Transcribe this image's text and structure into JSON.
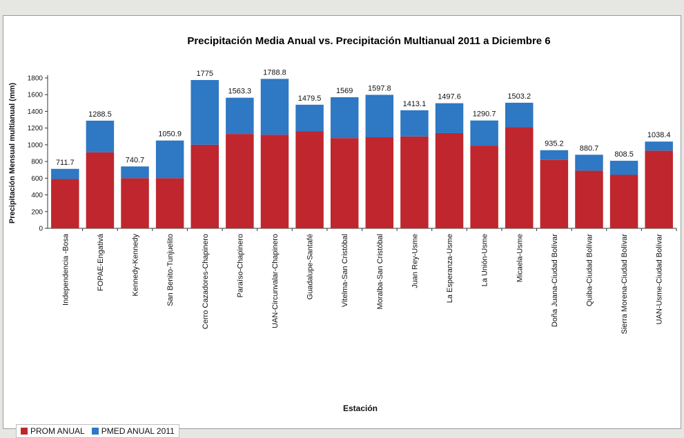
{
  "chart_data": {
    "type": "bar",
    "stacked": true,
    "title": "Precipitación Media Anual vs.  Precipitación Multianual 2011 a Diciembre 6",
    "xlabel": "Estación",
    "ylabel": "Precipitación Mensual multianual (mm)",
    "ylim": [
      0,
      1800
    ],
    "yticks": [
      0,
      200,
      400,
      600,
      800,
      1000,
      1200,
      1400,
      1600,
      1800
    ],
    "grid": false,
    "legend_position": "bottom-left",
    "categories": [
      "Independencia -Bosa",
      "FOPAE-Engativá",
      "Kennedy-Kennedy",
      "San Benito-Tunjuelito",
      "Cerro Cazadores-Chapinero",
      "Paraíso-Chapinero",
      "UAN-Circunvalar-Chapinero",
      "Guadalupe-Santafé",
      "Vitelma-San Cristóbal",
      "Moralba-San Cristóbal",
      "Juan Rey-Usme",
      "La Esperanza-Usme",
      "La Unión-Usme",
      "Micaela-Usme",
      "Doña Juana-Ciudad Bolívar",
      "Quiba-Ciudad Bolívar",
      "Sierra Morena-Ciudad Bolívar",
      "UAN-Usme-Ciudad Bolívar"
    ],
    "series": [
      {
        "name": "PROM ANUAL",
        "color": "#c0262d",
        "values": [
          590,
          910,
          600,
          600,
          1000,
          1130,
          1120,
          1160,
          1080,
          1090,
          1100,
          1140,
          990,
          1210,
          820,
          690,
          640,
          930
        ]
      },
      {
        "name": "PMED ANUAL 2011",
        "color": "#2e78c4",
        "values": [
          121.7,
          378.5,
          140.7,
          450.9,
          775,
          433.3,
          668.8,
          319.5,
          489,
          507.8,
          313.1,
          357.6,
          300.7,
          293.2,
          115.2,
          190.7,
          168.5,
          108.4
        ]
      }
    ],
    "data_labels": [
      "711.7",
      "1288.5",
      "740.7",
      "1050.9",
      "1775",
      "1563.3",
      "1788.8",
      "1479.5",
      "1569",
      "1597.8",
      "1413.1",
      "1497.6",
      "1290.7",
      "1503.2",
      "935.2",
      "880.7",
      "808.5",
      "1038.4"
    ]
  }
}
